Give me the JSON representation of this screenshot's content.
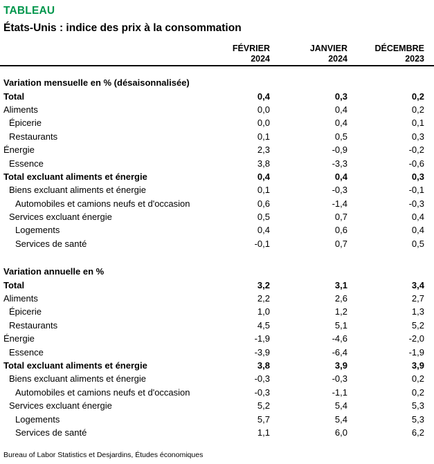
{
  "header": {
    "kicker": "TABLEAU",
    "title": "États-Unis : indice des prix à la consommation"
  },
  "columns": [
    {
      "line1": "FÉVRIER",
      "line2": "2024"
    },
    {
      "line1": "JANVIER",
      "line2": "2024"
    },
    {
      "line1": "DÉCEMBRE",
      "line2": "2023"
    }
  ],
  "sections": [
    {
      "title": "Variation mensuelle en % (désaisonnalisée)",
      "rows": [
        {
          "label": "Total",
          "indent": 0,
          "bold": true,
          "values": [
            "0,4",
            "0,3",
            "0,2"
          ]
        },
        {
          "label": "Aliments",
          "indent": 0,
          "bold": false,
          "values": [
            "0,0",
            "0,4",
            "0,2"
          ]
        },
        {
          "label": "Épicerie",
          "indent": 1,
          "bold": false,
          "values": [
            "0,0",
            "0,4",
            "0,1"
          ]
        },
        {
          "label": "Restaurants",
          "indent": 1,
          "bold": false,
          "values": [
            "0,1",
            "0,5",
            "0,3"
          ]
        },
        {
          "label": "Énergie",
          "indent": 0,
          "bold": false,
          "values": [
            "2,3",
            "-0,9",
            "-0,2"
          ]
        },
        {
          "label": "Essence",
          "indent": 1,
          "bold": false,
          "values": [
            "3,8",
            "-3,3",
            "-0,6"
          ]
        },
        {
          "label": "Total excluant aliments et énergie",
          "indent": 0,
          "bold": true,
          "values": [
            "0,4",
            "0,4",
            "0,3"
          ]
        },
        {
          "label": "Biens excluant aliments et énergie",
          "indent": 1,
          "bold": false,
          "values": [
            "0,1",
            "-0,3",
            "-0,1"
          ]
        },
        {
          "label": "Automobiles et camions neufs et d'occasion",
          "indent": 2,
          "bold": false,
          "values": [
            "0,6",
            "-1,4",
            "-0,3"
          ]
        },
        {
          "label": "Services excluant énergie",
          "indent": 1,
          "bold": false,
          "values": [
            "0,5",
            "0,7",
            "0,4"
          ]
        },
        {
          "label": "Logements",
          "indent": 2,
          "bold": false,
          "values": [
            "0,4",
            "0,6",
            "0,4"
          ]
        },
        {
          "label": "Services de santé",
          "indent": 2,
          "bold": false,
          "values": [
            "-0,1",
            "0,7",
            "0,5"
          ]
        }
      ]
    },
    {
      "title": "Variation annuelle en %",
      "rows": [
        {
          "label": "Total",
          "indent": 0,
          "bold": true,
          "values": [
            "3,2",
            "3,1",
            "3,4"
          ]
        },
        {
          "label": "Aliments",
          "indent": 0,
          "bold": false,
          "values": [
            "2,2",
            "2,6",
            "2,7"
          ]
        },
        {
          "label": "Épicerie",
          "indent": 1,
          "bold": false,
          "values": [
            "1,0",
            "1,2",
            "1,3"
          ]
        },
        {
          "label": "Restaurants",
          "indent": 1,
          "bold": false,
          "values": [
            "4,5",
            "5,1",
            "5,2"
          ]
        },
        {
          "label": "Énergie",
          "indent": 0,
          "bold": false,
          "values": [
            "-1,9",
            "-4,6",
            "-2,0"
          ]
        },
        {
          "label": "Essence",
          "indent": 1,
          "bold": false,
          "values": [
            "-3,9",
            "-6,4",
            "-1,9"
          ]
        },
        {
          "label": "Total excluant aliments et énergie",
          "indent": 0,
          "bold": true,
          "values": [
            "3,8",
            "3,9",
            "3,9"
          ]
        },
        {
          "label": "Biens excluant aliments et énergie",
          "indent": 1,
          "bold": false,
          "values": [
            "-0,3",
            "-0,3",
            "0,2"
          ]
        },
        {
          "label": "Automobiles et camions neufs et d'occasion",
          "indent": 2,
          "bold": false,
          "values": [
            "-0,3",
            "-1,1",
            "0,2"
          ]
        },
        {
          "label": "Services excluant énergie",
          "indent": 1,
          "bold": false,
          "values": [
            "5,2",
            "5,4",
            "5,3"
          ]
        },
        {
          "label": "Logements",
          "indent": 2,
          "bold": false,
          "values": [
            "5,7",
            "5,4",
            "5,3"
          ]
        },
        {
          "label": "Services de santé",
          "indent": 2,
          "bold": false,
          "values": [
            "1,1",
            "6,0",
            "6,2"
          ]
        }
      ]
    }
  ],
  "footer": {
    "source": "Bureau of Labor Statistics et Desjardins, Études économiques"
  },
  "colors": {
    "accent_green": "#00964C",
    "text": "#000000",
    "rule": "#000000"
  }
}
